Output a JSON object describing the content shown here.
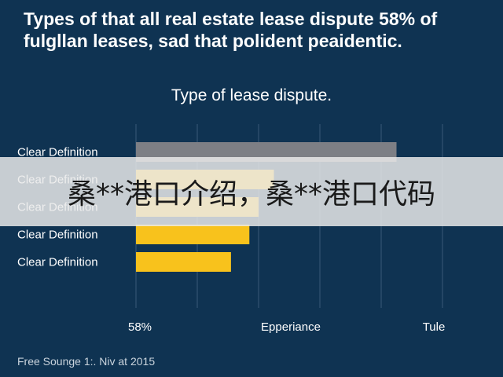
{
  "chart_data": {
    "type": "bar",
    "orientation": "horizontal",
    "title": "Types of that all real estate lease dispute 58% of fulgllan leases, sad that polident peaidentic.",
    "subtitle": "Type of lease dispute.",
    "categories": [
      "Clear Definition",
      "Clear Definition",
      "Clear Definition",
      "Clear Definition",
      "Clear Definition"
    ],
    "values": [
      85,
      45,
      40,
      37,
      31
    ],
    "bar_colors": [
      "#7d7f85",
      "#f8c21c",
      "#f8c21c",
      "#f8c21c",
      "#f8c21c"
    ],
    "xlim": [
      0,
      100
    ],
    "x_tick_labels": [
      "58%",
      "Epperiance",
      "Tule"
    ],
    "grid": true
  },
  "source": "Free Sounge 1:. Niv at 2015",
  "banner": {
    "text": "桑**港口介绍，桑**港口代码"
  }
}
